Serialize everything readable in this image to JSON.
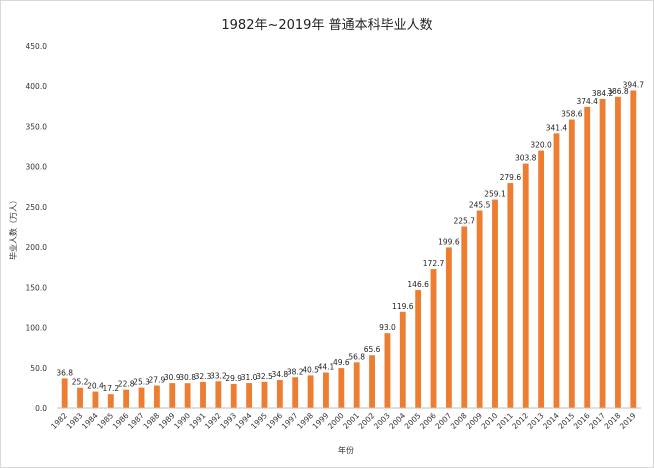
{
  "chart_data": {
    "type": "bar",
    "title": "1982年~2019年 普通本科毕业人数",
    "xlabel": "年份",
    "ylabel": "毕业人数（万人）",
    "ylim": [
      0,
      450
    ],
    "yticks": [
      "0.0",
      "50.0",
      "100.0",
      "150.0",
      "200.0",
      "250.0",
      "300.0",
      "350.0",
      "400.0",
      "450.0"
    ],
    "grid": false,
    "legend": "none",
    "bar_color": "#ED7D31",
    "categories": [
      "1982",
      "1983",
      "1984",
      "1985",
      "1986",
      "1987",
      "1988",
      "1989",
      "1990",
      "1991",
      "1992",
      "1993",
      "1994",
      "1995",
      "1996",
      "1997",
      "1998",
      "1999",
      "2000",
      "2001",
      "2002",
      "2003",
      "2004",
      "2005",
      "2006",
      "2007",
      "2008",
      "2009",
      "2010",
      "2011",
      "2012",
      "2013",
      "2014",
      "2015",
      "2016",
      "2017",
      "2018",
      "2019"
    ],
    "values": [
      36.8,
      25.2,
      20.4,
      17.2,
      22.8,
      25.3,
      27.9,
      30.9,
      30.8,
      32.3,
      33.2,
      29.9,
      31.0,
      32.5,
      34.8,
      38.2,
      40.5,
      44.1,
      49.6,
      56.8,
      65.6,
      93.0,
      119.6,
      146.6,
      172.7,
      199.6,
      225.7,
      245.5,
      259.1,
      279.6,
      303.8,
      320.0,
      341.4,
      358.6,
      374.4,
      384.2,
      386.8,
      394.7
    ],
    "value_labels": [
      "36.8",
      "25.2",
      "20.4",
      "17.2",
      "22.8",
      "25.3",
      "27.9",
      "30.9",
      "30.8",
      "32.3",
      "33.2",
      "29.9",
      "31.0",
      "32.5",
      "34.8",
      "38.2",
      "40.5",
      "44.1",
      "49.6",
      "56.8",
      "65.6",
      "93.0",
      "119.6",
      "146.6",
      "172.7",
      "199.6",
      "225.7",
      "245.5",
      "259.1",
      "279.6",
      "303.8",
      "320.0",
      "341.4",
      "358.6",
      "374.4",
      "384.2",
      "386.8",
      "394.7"
    ]
  }
}
